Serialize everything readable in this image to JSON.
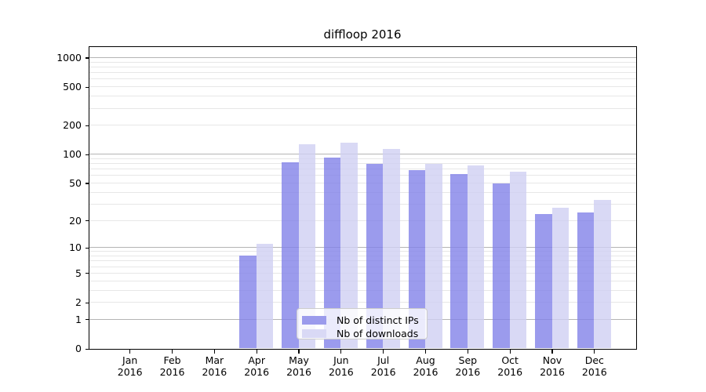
{
  "chart_data": {
    "type": "bar",
    "title": "diffloop 2016",
    "categories": [
      "Jan",
      "Feb",
      "Mar",
      "Apr",
      "May",
      "Jun",
      "Jul",
      "Aug",
      "Sep",
      "Oct",
      "Nov",
      "Dec"
    ],
    "xtick_sublabel": "2016",
    "series": [
      {
        "name": "Nb of distinct IPs",
        "color": "rgba(130,130,232,0.8)",
        "legend_color": "#9b9bec",
        "values": [
          0,
          0,
          0,
          8,
          81,
          91,
          78,
          67,
          62,
          49,
          23,
          24
        ]
      },
      {
        "name": "Nb of downloads",
        "color": "rgba(208,208,243,0.8)",
        "legend_color": "#d9d9f5",
        "values": [
          0,
          0,
          0,
          11,
          126,
          130,
          112,
          78,
          75,
          65,
          27,
          33
        ]
      }
    ],
    "yscale": "log1p",
    "yticks": [
      0,
      1,
      2,
      5,
      10,
      20,
      50,
      100,
      200,
      500,
      1000
    ],
    "ylim": [
      0,
      1275
    ],
    "grid": "on",
    "grid_major_at": [
      1,
      10,
      100,
      1000
    ],
    "legend_position": "lower-center",
    "colors": {
      "major_grid": "#b4b4b4",
      "minor_grid": "#e7e7e7",
      "axis": "#000000"
    }
  }
}
